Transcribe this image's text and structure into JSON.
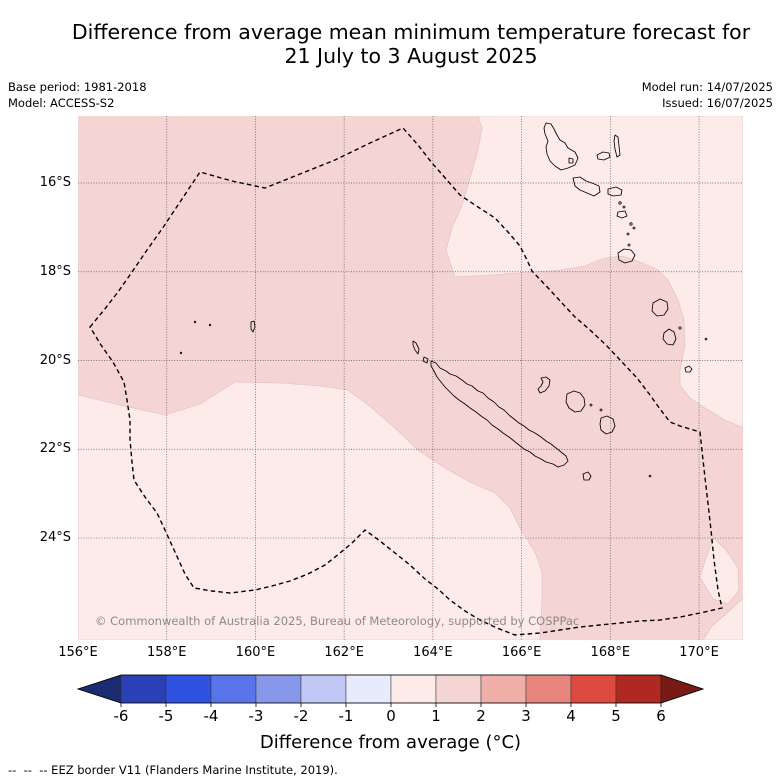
{
  "title": {
    "line1": "Difference from average mean minimum temperature forecast for",
    "line2": "21 July to 3 August 2025"
  },
  "header": {
    "base_period": "Base period: 1981-2018",
    "model": "Model: ACCESS-S2",
    "model_run": "Model run: 14/07/2025",
    "issued": "Issued: 16/07/2025"
  },
  "map": {
    "latitude_labels": [
      "16°S",
      "18°S",
      "20°S",
      "22°S",
      "24°S"
    ],
    "longitude_labels": [
      "156°E",
      "158°E",
      "160°E",
      "162°E",
      "164°E",
      "166°E",
      "168°E",
      "170°E"
    ],
    "anomaly_ranges": [
      {
        "min": 1,
        "max": 2
      },
      {
        "min": 0,
        "max": 1
      }
    ],
    "copyright": "© Commonwealth of Australia 2025, Bureau of Meteorology, supported by COSPPac"
  },
  "colorbar": {
    "label": "Difference from average (°C)",
    "tick_labels": [
      "-6",
      "-5",
      "-4",
      "-3",
      "-2",
      "-1",
      "0",
      "1",
      "2",
      "3",
      "4",
      "5",
      "6"
    ],
    "colors": [
      "#2a40b4",
      "#2f52e0",
      "#5974e6",
      "#8797ea",
      "#c0c7f4",
      "#e8ebfb",
      "#fdebea",
      "#f5d5d3",
      "#f0aea9",
      "#e8857e",
      "#dd4a40",
      "#b02822"
    ],
    "under_color": "#1b2b72",
    "over_color": "#781a16"
  },
  "legend": {
    "eez_border": "--  --  -- EEZ border V11 (Flanders Marine Institute, 2019)."
  }
}
